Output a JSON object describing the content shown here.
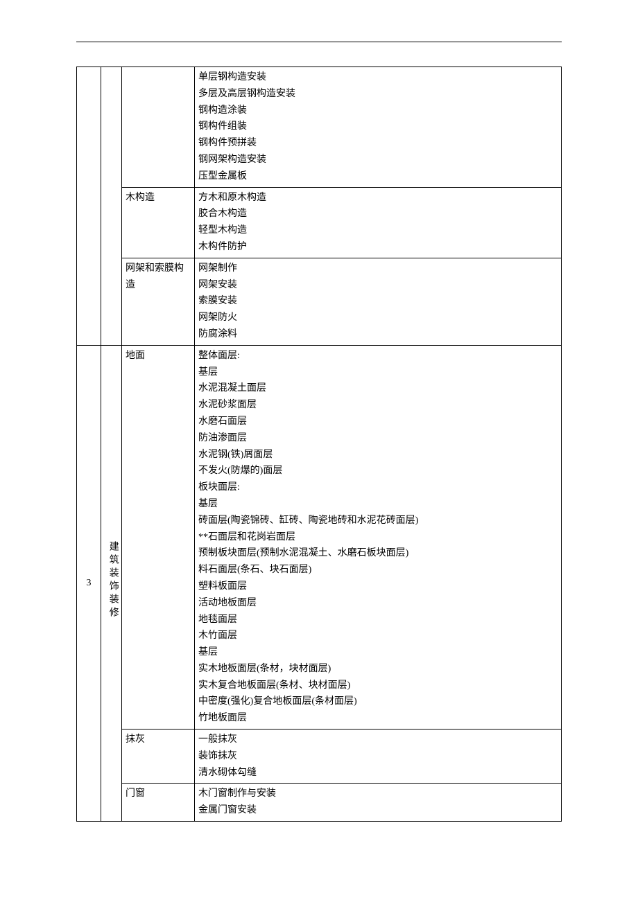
{
  "table": {
    "section1": {
      "num": "",
      "cat": "",
      "groups": [
        {
          "sub": "",
          "details": [
            "单层钢构造安装",
            "多层及高层钢构造安装",
            "钢构造涂装",
            "钢构件组装",
            "钢构件预拼装",
            "钢网架构造安装",
            "压型金属板"
          ]
        },
        {
          "sub": "木构造",
          "details": [
            "方木和原木构造",
            "胶合木构造",
            "轻型木构造",
            "木构件防护"
          ]
        },
        {
          "sub": "网架和索膜构造",
          "details": [
            "网架制作",
            "网架安装",
            "索膜安装",
            "网架防火",
            "防腐涂料"
          ]
        }
      ]
    },
    "section2": {
      "num": "3",
      "cat": "建筑装饰装修",
      "groups": [
        {
          "sub": "地面",
          "details": [
            "整体面层:",
            "基层",
            "水泥混凝土面层",
            "水泥砂浆面层",
            "水磨石面层",
            "防油渗面层",
            "水泥钢(铁)屑面层",
            "不发火(防爆的)面层",
            "板块面层:",
            "基层",
            "砖面层(陶瓷锦砖、缸砖、陶瓷地砖和水泥花砖面层)",
            "**石面层和花岗岩面层",
            "预制板块面层(预制水泥混凝土、水磨石板块面层)",
            "料石面层(条石、块石面层)",
            "塑料板面层",
            "活动地板面层",
            "地毯面层",
            "木竹面层",
            "基层",
            "实木地板面层(条材，块材面层)",
            "实木复合地板面层(条材、块材面层)",
            "中密度(强化)复合地板面层(条材面层)",
            "竹地板面层"
          ]
        },
        {
          "sub": "抹灰",
          "details": [
            "一般抹灰",
            "装饰抹灰",
            "清水砌体勾缝"
          ]
        },
        {
          "sub": "门窗",
          "details": [
            "木门窗制作与安装",
            "金属门窗安装"
          ]
        }
      ]
    }
  },
  "style": {
    "font_family": "SimSun",
    "font_size": 14,
    "border_color": "#000000",
    "background_color": "#ffffff",
    "text_color": "#000000"
  }
}
